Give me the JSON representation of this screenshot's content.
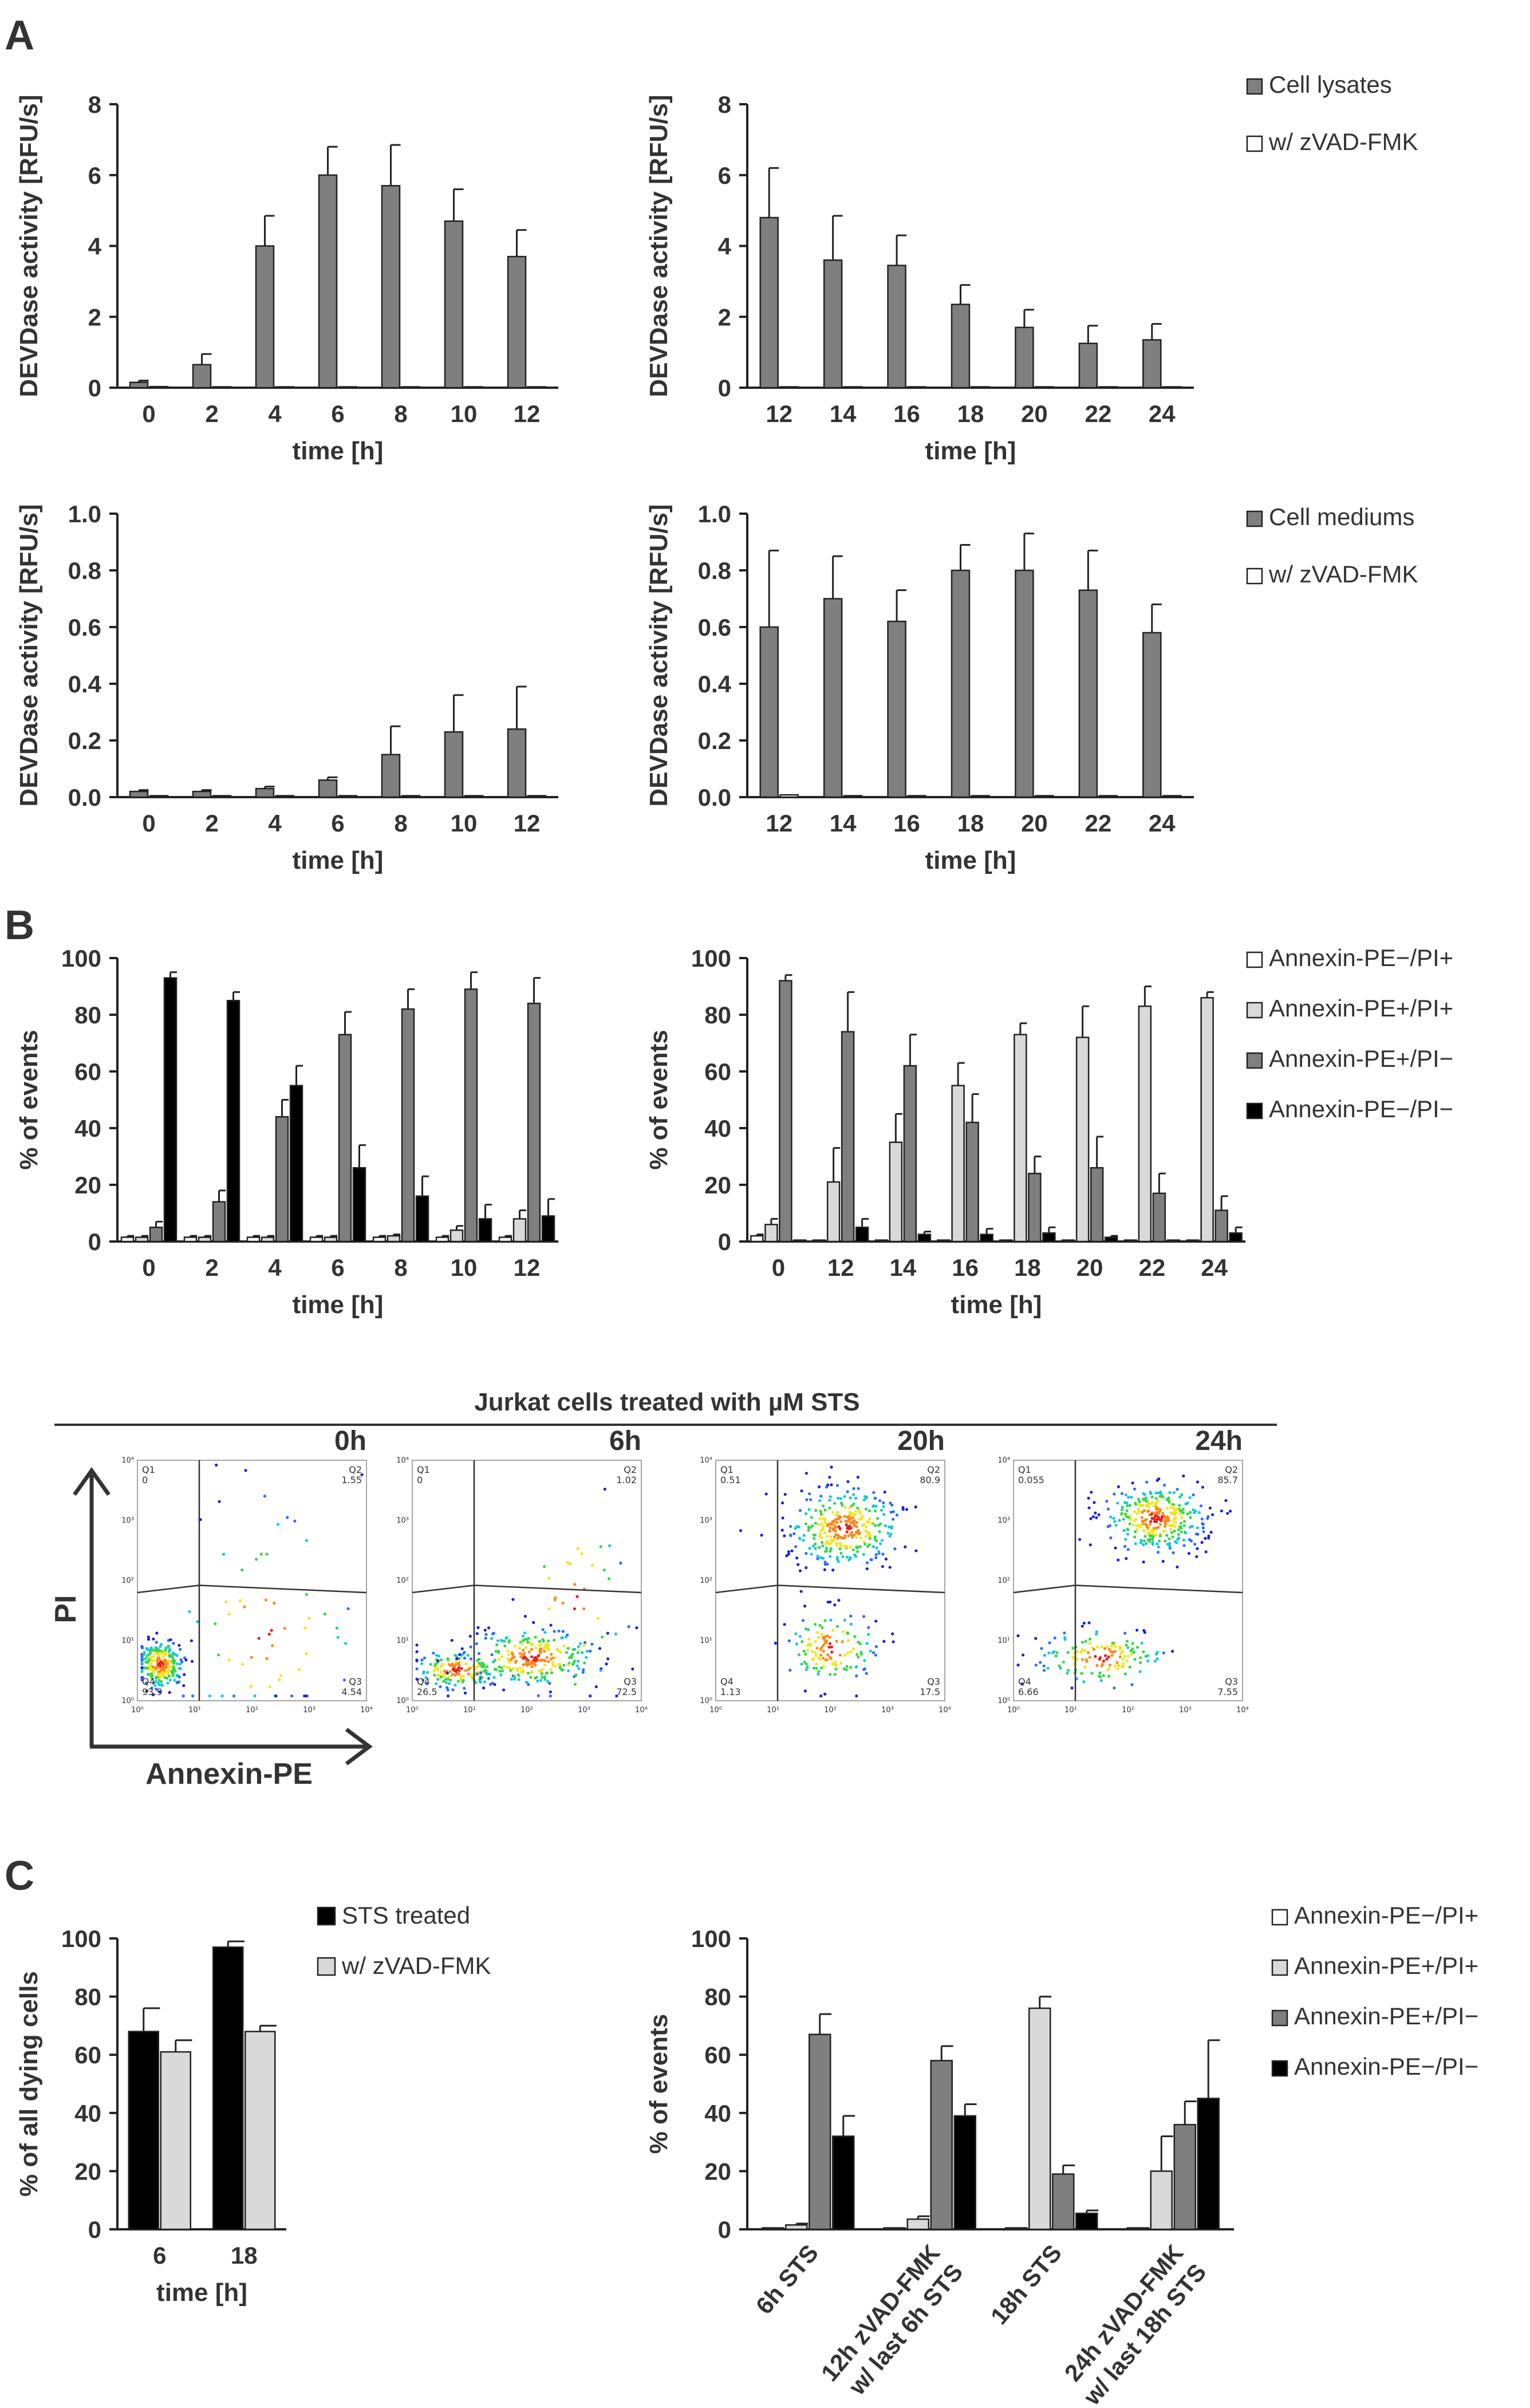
{
  "panel_letters": [
    "A",
    "B",
    "C"
  ],
  "colors": {
    "dark": "#7f7f7f",
    "light": "#d9d9d9",
    "white": "#ffffff",
    "black": "#000000",
    "edge": "#222222"
  },
  "facs": {
    "title": "Jurkat cells treated with µM STS",
    "x_label": "Annexin-PE",
    "y_label": "PI",
    "plots": [
      {
        "time": "0h",
        "q1": "Q1",
        "q1v": "0",
        "q2": "Q2",
        "q2v": "1.55",
        "q3": "Q3",
        "q3v": "4.54",
        "q4": "Q4",
        "q4v": "93.9"
      },
      {
        "time": "6h",
        "q1": "Q1",
        "q1v": "0",
        "q2": "Q2",
        "q2v": "1.02",
        "q3": "Q3",
        "q3v": "72.5",
        "q4": "Q4",
        "q4v": "26.5"
      },
      {
        "time": "20h",
        "q1": "Q1",
        "q1v": "0.51",
        "q2": "Q2",
        "q2v": "80.9",
        "q3": "Q3",
        "q3v": "17.5",
        "q4": "Q4",
        "q4v": "1.13"
      },
      {
        "time": "24h",
        "q1": "Q1",
        "q1v": "0.055",
        "q2": "Q2",
        "q2v": "85.7",
        "q3": "Q3",
        "q3v": "7.55",
        "q4": "Q4",
        "q4v": "6.66"
      }
    ]
  },
  "chart_data": [
    {
      "id": "A1",
      "type": "bar",
      "categories": [
        "0",
        "2",
        "4",
        "6",
        "8",
        "10",
        "12"
      ],
      "xlabel": "time [h]",
      "ylabel": "DEVDase activity [RFU/s]",
      "ylim": [
        0,
        8
      ],
      "yticks": [
        "0",
        "2",
        "4",
        "6",
        "8"
      ],
      "series": [
        {
          "name": "Cell lysates",
          "color": "#7f7f7f",
          "values": [
            0.15,
            0.65,
            4.0,
            6.0,
            5.7,
            4.7,
            3.7
          ],
          "errors": [
            0.05,
            0.3,
            0.85,
            0.8,
            1.15,
            0.9,
            0.75
          ]
        },
        {
          "name": "w/ zVAD-FMK",
          "color": "#ffffff",
          "values": [
            0.03,
            0.02,
            0.02,
            0.02,
            0.02,
            0.02,
            0.02
          ],
          "errors": [
            0,
            0,
            0,
            0,
            0,
            0,
            0
          ]
        }
      ]
    },
    {
      "id": "A2",
      "type": "bar",
      "categories": [
        "12",
        "14",
        "16",
        "18",
        "20",
        "22",
        "24"
      ],
      "xlabel": "time [h]",
      "ylabel": "DEVDase activity [RFU/s]",
      "ylim": [
        0,
        8
      ],
      "yticks": [
        "0",
        "2",
        "4",
        "6",
        "8"
      ],
      "legend": [
        "Cell lysates",
        "w/ zVAD-FMK"
      ],
      "series": [
        {
          "name": "Cell lysates",
          "color": "#7f7f7f",
          "values": [
            4.8,
            3.6,
            3.45,
            2.35,
            1.7,
            1.25,
            1.35
          ],
          "errors": [
            1.4,
            1.25,
            0.85,
            0.55,
            0.5,
            0.5,
            0.45
          ]
        },
        {
          "name": "w/ zVAD-FMK",
          "color": "#ffffff",
          "values": [
            0.02,
            0.02,
            0.02,
            0.02,
            0.02,
            0.02,
            0.02
          ],
          "errors": [
            0,
            0,
            0,
            0,
            0,
            0,
            0
          ]
        }
      ]
    },
    {
      "id": "A3",
      "type": "bar",
      "categories": [
        "0",
        "2",
        "4",
        "6",
        "8",
        "10",
        "12"
      ],
      "xlabel": "time [h]",
      "ylabel": "DEVDase activity [RFU/s]",
      "ylim": [
        0,
        1.0
      ],
      "yticks": [
        "0.0",
        "0.2",
        "0.4",
        "0.6",
        "0.8",
        "1.0"
      ],
      "series": [
        {
          "name": "Cell mediums",
          "color": "#7f7f7f",
          "values": [
            0.02,
            0.02,
            0.03,
            0.06,
            0.15,
            0.23,
            0.24
          ],
          "errors": [
            0.005,
            0.005,
            0.007,
            0.01,
            0.1,
            0.13,
            0.15
          ]
        },
        {
          "name": "w/ zVAD-FMK",
          "color": "#ffffff",
          "values": [
            0.005,
            0.005,
            0.005,
            0.005,
            0.005,
            0.005,
            0.005
          ],
          "errors": [
            0,
            0,
            0,
            0,
            0,
            0,
            0
          ]
        }
      ]
    },
    {
      "id": "A4",
      "type": "bar",
      "categories": [
        "12",
        "14",
        "16",
        "18",
        "20",
        "22",
        "24"
      ],
      "xlabel": "time [h]",
      "ylabel": "DEVDase activity [RFU/s]",
      "ylim": [
        0,
        1.0
      ],
      "yticks": [
        "0.0",
        "0.2",
        "0.4",
        "0.6",
        "0.8",
        "1.0"
      ],
      "legend": [
        "Cell mediums",
        "w/ zVAD-FMK"
      ],
      "series": [
        {
          "name": "Cell mediums",
          "color": "#7f7f7f",
          "values": [
            0.6,
            0.7,
            0.62,
            0.8,
            0.8,
            0.73,
            0.58
          ],
          "errors": [
            0.27,
            0.15,
            0.11,
            0.09,
            0.13,
            0.14,
            0.1
          ]
        },
        {
          "name": "w/ zVAD-FMK",
          "color": "#ffffff",
          "values": [
            0.008,
            0.005,
            0.005,
            0.005,
            0.005,
            0.005,
            0.005
          ],
          "errors": [
            0,
            0,
            0,
            0,
            0,
            0,
            0
          ]
        }
      ]
    },
    {
      "id": "B1",
      "type": "bar",
      "categories": [
        "0",
        "2",
        "4",
        "6",
        "8",
        "10",
        "12"
      ],
      "xlabel": "time [h]",
      "ylabel": "% of events",
      "ylim": [
        0,
        100
      ],
      "yticks": [
        "0",
        "20",
        "40",
        "60",
        "80",
        "100"
      ],
      "series": [
        {
          "name": "Annexin-PE−/PI+",
          "color": "#ffffff",
          "values": [
            1.5,
            1.5,
            1.5,
            1.5,
            1.5,
            1.5,
            1.5
          ],
          "errors": [
            0.5,
            0.5,
            0.5,
            0.5,
            0.5,
            0.5,
            0.5
          ]
        },
        {
          "name": "Annexin-PE+/PI+",
          "color": "#d9d9d9",
          "values": [
            1.5,
            1.5,
            1.5,
            1.5,
            2,
            4,
            8
          ],
          "errors": [
            0.5,
            0.5,
            0.5,
            0.5,
            0.5,
            1.5,
            3
          ]
        },
        {
          "name": "Annexin-PE+/PI−",
          "color": "#7f7f7f",
          "values": [
            5,
            14,
            44,
            73,
            82,
            89,
            84
          ],
          "errors": [
            2,
            4,
            6,
            8,
            7,
            6,
            9
          ]
        },
        {
          "name": "Annexin-PE−/PI−",
          "color": "#000000",
          "values": [
            93,
            85,
            55,
            26,
            16,
            8,
            9
          ],
          "errors": [
            2,
            3,
            7,
            8,
            7,
            5,
            6
          ]
        }
      ]
    },
    {
      "id": "B2",
      "type": "bar",
      "categories": [
        "0",
        "12",
        "14",
        "16",
        "18",
        "20",
        "22",
        "24"
      ],
      "xlabel": "time [h]",
      "ylabel": "% of events",
      "ylim": [
        0,
        100
      ],
      "yticks": [
        "0",
        "20",
        "40",
        "60",
        "80",
        "100"
      ],
      "legend": [
        "Annexin-PE−/PI+",
        "Annexin-PE+/PI+",
        "Annexin-PE+/PI−",
        "Annexin-PE−/PI−"
      ],
      "series": [
        {
          "name": "Annexin-PE−/PI+",
          "color": "#ffffff",
          "values": [
            2,
            0.5,
            0.5,
            0.5,
            0.5,
            0.5,
            0.5,
            0.5
          ],
          "errors": [
            0.5,
            0,
            0,
            0,
            0,
            0,
            0,
            0
          ]
        },
        {
          "name": "Annexin-PE+/PI+",
          "color": "#d9d9d9",
          "values": [
            6,
            21,
            35,
            55,
            73,
            72,
            83,
            86
          ],
          "errors": [
            2,
            12,
            10,
            8,
            4,
            11,
            7,
            2
          ]
        },
        {
          "name": "Annexin-PE+/PI−",
          "color": "#7f7f7f",
          "values": [
            92,
            74,
            62,
            42,
            24,
            26,
            17,
            11
          ],
          "errors": [
            2,
            14,
            11,
            10,
            6,
            11,
            7,
            5
          ]
        },
        {
          "name": "Annexin-PE−/PI−",
          "color": "#000000",
          "values": [
            0.5,
            5,
            2.5,
            2.5,
            3,
            1.5,
            0.5,
            3
          ],
          "errors": [
            0,
            3,
            1,
            2,
            2,
            0.5,
            0,
            2
          ]
        }
      ]
    },
    {
      "id": "C1",
      "type": "bar",
      "categories": [
        "6",
        "18"
      ],
      "xlabel": "time [h]",
      "ylabel": "% of all dying cells",
      "ylim": [
        0,
        100
      ],
      "yticks": [
        "0",
        "20",
        "40",
        "60",
        "80",
        "100"
      ],
      "legend": [
        "STS treated",
        "w/ zVAD-FMK"
      ],
      "series": [
        {
          "name": "STS treated",
          "color": "#000000",
          "values": [
            68,
            97
          ],
          "errors": [
            8,
            2
          ]
        },
        {
          "name": "w/ zVAD-FMK",
          "color": "#d9d9d9",
          "values": [
            61,
            68
          ],
          "errors": [
            4,
            2
          ]
        }
      ]
    },
    {
      "id": "C2",
      "type": "bar",
      "categories": [
        "6h STS",
        "12h zVAD-FMK w/ last 6h STS",
        "18h STS",
        "24h zVAD-FMK w/ last 18h STS"
      ],
      "ylabel": "% of events",
      "ylim": [
        0,
        100
      ],
      "yticks": [
        "0",
        "20",
        "40",
        "60",
        "80",
        "100"
      ],
      "legend": [
        "Annexin-PE−/PI+",
        "Annexin-PE+/PI+",
        "Annexin-PE+/PI−",
        "Annexin-PE−/PI−"
      ],
      "series": [
        {
          "name": "Annexin-PE−/PI+",
          "color": "#ffffff",
          "values": [
            0.5,
            0.5,
            0.5,
            0.5
          ],
          "errors": [
            0,
            0,
            0,
            0
          ]
        },
        {
          "name": "Annexin-PE+/PI+",
          "color": "#d9d9d9",
          "values": [
            1.5,
            3.5,
            76,
            20
          ],
          "errors": [
            0.5,
            1,
            4,
            12
          ]
        },
        {
          "name": "Annexin-PE+/PI−",
          "color": "#7f7f7f",
          "values": [
            67,
            58,
            19,
            36
          ],
          "errors": [
            7,
            5,
            3,
            8
          ]
        },
        {
          "name": "Annexin-PE−/PI−",
          "color": "#000000",
          "values": [
            32,
            39,
            5.5,
            45
          ],
          "errors": [
            7,
            4,
            1,
            20
          ]
        }
      ]
    }
  ]
}
